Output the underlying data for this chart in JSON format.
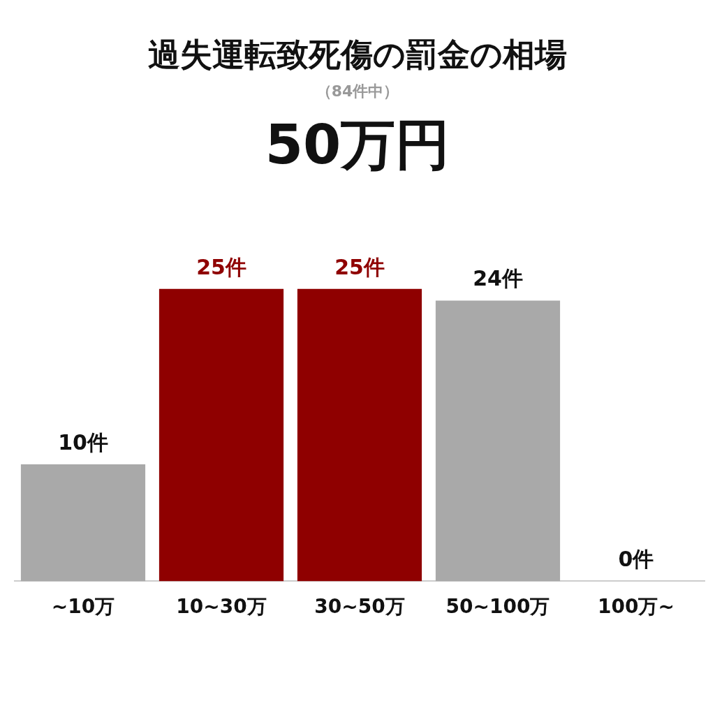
{
  "chart_data": {
    "type": "bar",
    "title": "過失運転致死傷の罰金の相場",
    "subtitle": "（84件中）",
    "annotations": [
      "50万円"
    ],
    "categories": [
      "~10万",
      "10~30万",
      "30~50万",
      "50~100万",
      "100万~"
    ],
    "values": [
      10,
      25,
      25,
      24,
      0
    ],
    "colors": [
      "#a9a9a9",
      "#8f0000",
      "#8f0000",
      "#a9a9a9",
      "#a9a9a9"
    ],
    "value_labels": [
      "10件",
      "25件",
      "25件",
      "24件",
      "0件"
    ],
    "grid": false,
    "legend": false
  }
}
